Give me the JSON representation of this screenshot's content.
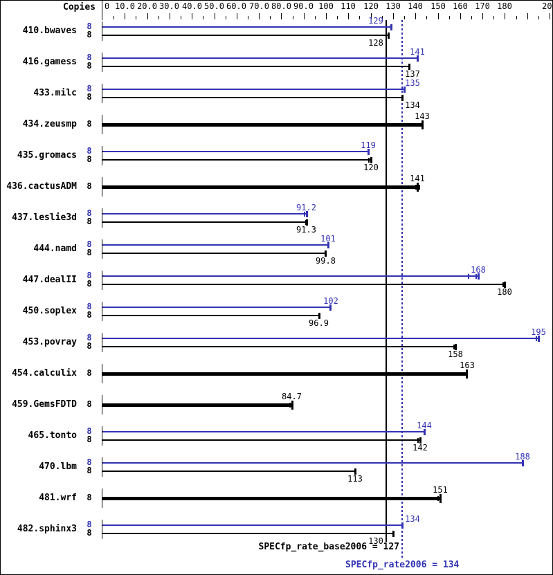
{
  "header": {
    "copies_label": "Copies"
  },
  "summary": {
    "base_label": "SPECfp_rate_base2006 = 127",
    "peak_label": "SPECfp_rate2006 = 134"
  },
  "colors": {
    "peak_blue": "#3232b4",
    "base_black": "#000000"
  },
  "chart_data": {
    "type": "bar",
    "orientation": "horizontal",
    "title": "",
    "xlabel": "Copies",
    "axis": {
      "min": 0,
      "max": 200,
      "minor_step": 5,
      "major_step": 10,
      "labels": [
        {
          "v": 0,
          "t": "0"
        },
        {
          "v": 10,
          "t": "10.0"
        },
        {
          "v": 20,
          "t": "20.0"
        },
        {
          "v": 30,
          "t": "30.0"
        },
        {
          "v": 40,
          "t": "40.0"
        },
        {
          "v": 50,
          "t": "50.0"
        },
        {
          "v": 60,
          "t": "60.0"
        },
        {
          "v": 70,
          "t": "70.0"
        },
        {
          "v": 80,
          "t": "80.0"
        },
        {
          "v": 90,
          "t": "90.0"
        },
        {
          "v": 100,
          "t": "100"
        },
        {
          "v": 110,
          "t": "110"
        },
        {
          "v": 120,
          "t": "120"
        },
        {
          "v": 130,
          "t": "130"
        },
        {
          "v": 140,
          "t": "140"
        },
        {
          "v": 150,
          "t": "150"
        },
        {
          "v": 160,
          "t": "160"
        },
        {
          "v": 170,
          "t": "170"
        },
        {
          "v": 180,
          "t": "180"
        },
        {
          "v": 200,
          "t": "200"
        }
      ]
    },
    "reference_lines": [
      {
        "name": "SPECfp_rate_base2006",
        "value": 127,
        "style": "solid",
        "color": "#000000"
      },
      {
        "name": "SPECfp_rate2006",
        "value": 134,
        "style": "dotted",
        "color": "#3232b4"
      }
    ],
    "benchmarks": [
      {
        "name": "410.bwaves",
        "bars": [
          {
            "kind": "peak",
            "copies": "8",
            "value": 129,
            "label": "129",
            "marks": []
          },
          {
            "kind": "base",
            "copies": "8",
            "value": 128,
            "label": "128",
            "marks": []
          }
        ]
      },
      {
        "name": "416.gamess",
        "bars": [
          {
            "kind": "peak",
            "copies": "8",
            "value": 141,
            "label": "141",
            "marks": []
          },
          {
            "kind": "base",
            "copies": "8",
            "value": 137,
            "label": "137",
            "marks": []
          }
        ]
      },
      {
        "name": "433.milc",
        "bars": [
          {
            "kind": "peak",
            "copies": "8",
            "value": 135,
            "label": "135",
            "marks": []
          },
          {
            "kind": "base",
            "copies": "8",
            "value": 134,
            "label": "134",
            "marks": []
          }
        ]
      },
      {
        "name": "434.zeusmp",
        "bars": [
          {
            "kind": "both",
            "copies": "8",
            "value": 143,
            "label": "143",
            "marks": []
          }
        ]
      },
      {
        "name": "435.gromacs",
        "bars": [
          {
            "kind": "peak",
            "copies": "8",
            "value": 119,
            "label": "119",
            "marks": []
          },
          {
            "kind": "base",
            "copies": "8",
            "value": 120,
            "label": "120",
            "marks": [
              119.3
            ]
          }
        ]
      },
      {
        "name": "436.cactusADM",
        "bars": [
          {
            "kind": "both",
            "copies": "8",
            "value": 141,
            "label": "141",
            "marks": [
              140.1,
              141.8
            ]
          }
        ]
      },
      {
        "name": "437.leslie3d",
        "bars": [
          {
            "kind": "peak",
            "copies": "8",
            "value": 91.2,
            "label": "91.2",
            "marks": [
              90.5
            ]
          },
          {
            "kind": "base",
            "copies": "8",
            "value": 91.3,
            "label": "91.3",
            "marks": [
              91.0
            ]
          }
        ]
      },
      {
        "name": "444.namd",
        "bars": [
          {
            "kind": "peak",
            "copies": "8",
            "value": 101,
            "label": "101",
            "marks": []
          },
          {
            "kind": "base",
            "copies": "8",
            "value": 99.8,
            "label": "99.8",
            "marks": []
          }
        ]
      },
      {
        "name": "447.dealII",
        "bars": [
          {
            "kind": "peak",
            "copies": "8",
            "value": 168,
            "label": "168",
            "marks": [
              163.8,
              167.2
            ]
          },
          {
            "kind": "base",
            "copies": "8",
            "value": 180,
            "label": "180",
            "marks": [
              179.2
            ]
          }
        ]
      },
      {
        "name": "450.soplex",
        "bars": [
          {
            "kind": "peak",
            "copies": "8",
            "value": 102,
            "label": "102",
            "marks": []
          },
          {
            "kind": "base",
            "copies": "8",
            "value": 96.9,
            "label": "96.9",
            "marks": []
          }
        ]
      },
      {
        "name": "453.povray",
        "bars": [
          {
            "kind": "peak",
            "copies": "8",
            "value": 195,
            "label": "195",
            "marks": [
              194.2
            ]
          },
          {
            "kind": "base",
            "copies": "8",
            "value": 158,
            "label": "158",
            "marks": [
              157.2
            ]
          }
        ]
      },
      {
        "name": "454.calculix",
        "bars": [
          {
            "kind": "both",
            "copies": "8",
            "value": 163,
            "label": "163",
            "marks": []
          }
        ]
      },
      {
        "name": "459.GemsFDTD",
        "bars": [
          {
            "kind": "both",
            "copies": "8",
            "value": 84.7,
            "label": "84.7",
            "marks": [
              84.0
            ]
          }
        ]
      },
      {
        "name": "465.tonto",
        "bars": [
          {
            "kind": "peak",
            "copies": "8",
            "value": 144,
            "label": "144",
            "marks": []
          },
          {
            "kind": "base",
            "copies": "8",
            "value": 142,
            "label": "142",
            "marks": [
              141.2
            ]
          }
        ]
      },
      {
        "name": "470.lbm",
        "bars": [
          {
            "kind": "peak",
            "copies": "8",
            "value": 188,
            "label": "188",
            "marks": []
          },
          {
            "kind": "base",
            "copies": "8",
            "value": 113,
            "label": "113",
            "marks": []
          }
        ]
      },
      {
        "name": "481.wrf",
        "bars": [
          {
            "kind": "both",
            "copies": "8",
            "value": 151,
            "label": "151",
            "marks": [
              150.2
            ]
          }
        ]
      },
      {
        "name": "482.sphinx3",
        "bars": [
          {
            "kind": "peak",
            "copies": "8",
            "value": 134,
            "label": "134",
            "marks": []
          },
          {
            "kind": "base",
            "copies": "8",
            "value": 130,
            "label": "130",
            "marks": []
          }
        ]
      }
    ]
  }
}
